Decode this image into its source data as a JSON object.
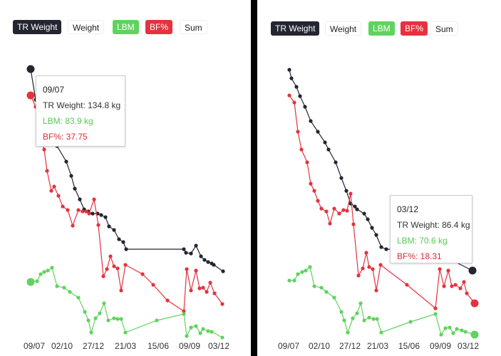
{
  "legend": {
    "tr_weight": "TR Weight",
    "weight": "Weight",
    "lbm": "LBM",
    "bf": "BF%",
    "sum": "Sum"
  },
  "colors": {
    "tr_weight": "#232530",
    "lbm": "#5fd35f",
    "bf": "#e5323e"
  },
  "left_tooltip": {
    "date": "09/07",
    "tr_weight": "TR Weight: 134.8 kg",
    "lbm": "LBM: 83.9 kg",
    "bf": "BF%: 37.75"
  },
  "right_tooltip": {
    "date": "03/12",
    "tr_weight": "TR Weight: 86.4 kg",
    "lbm": "LBM: 70.6 kg",
    "bf": "BF%: 18.31"
  },
  "chart_data": [
    {
      "type": "line",
      "x_tick_labels": [
        "09/07",
        "02/10",
        "27/12",
        "21/03",
        "15/06",
        "09/09",
        "03/12"
      ],
      "series": [
        {
          "name": "TR Weight",
          "first": 134.8,
          "last": 86.4,
          "unit": "kg"
        },
        {
          "name": "LBM",
          "first": 83.9,
          "last": 70.6,
          "unit": "kg"
        },
        {
          "name": "BF%",
          "first": 37.75,
          "last": 18.31
        }
      ],
      "hovered_point": "09/07"
    },
    {
      "type": "line",
      "x_tick_labels": [
        "09/07",
        "02/10",
        "27/12",
        "21/03",
        "15/06",
        "09/09",
        "03/12"
      ],
      "series": [
        {
          "name": "TR Weight",
          "first": 134.8,
          "last": 86.4,
          "unit": "kg"
        },
        {
          "name": "LBM",
          "first": 83.9,
          "last": 70.6,
          "unit": "kg"
        },
        {
          "name": "BF%",
          "first": 37.75,
          "last": 18.31
        }
      ],
      "hovered_point": "03/12"
    }
  ]
}
